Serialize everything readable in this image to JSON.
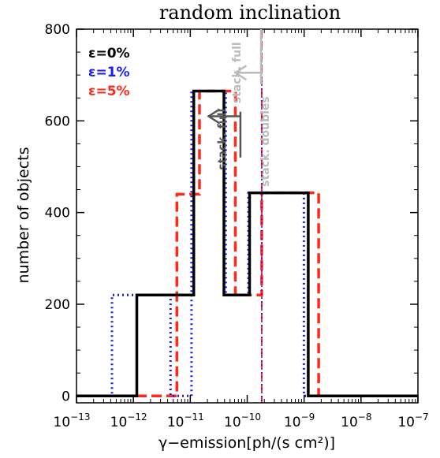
{
  "chart_data": {
    "type": "histogram",
    "title": "random inclination",
    "xlabel": "γ−emission[ph/(s cm²)]",
    "ylabel": "number of objects",
    "x_scale": "log",
    "xlim": [
      1e-13,
      1e-07
    ],
    "ylim": [
      -15,
      800
    ],
    "x_ticks": [
      {
        "mant": "10",
        "exp": "−13"
      },
      {
        "mant": "10",
        "exp": "−12"
      },
      {
        "mant": "10",
        "exp": "−11"
      },
      {
        "mant": "10",
        "exp": "−10"
      },
      {
        "mant": "10",
        "exp": "−9"
      },
      {
        "mant": "10",
        "exp": "−8"
      },
      {
        "mant": "10",
        "exp": "−7"
      }
    ],
    "y_ticks": [
      "0",
      "200",
      "400",
      "600",
      "800"
    ],
    "legend_position": "top-left",
    "series": [
      {
        "name": "ε=0%",
        "color": "#000000",
        "style": "solid",
        "edges": [
          1e-13,
          1.15e-12,
          1.15e-11,
          3.9e-11,
          1.1e-10,
          1.18e-09,
          1e-07
        ],
        "counts": [
          0,
          220,
          665,
          220,
          443,
          0
        ]
      },
      {
        "name": "ε=1%",
        "color": "#1a1aff",
        "style": "dotted",
        "edges": [
          1e-13,
          4.2e-13,
          4.5e-12,
          1.05e-11,
          4.2e-11,
          1.05e-10,
          9.9e-10,
          1e-07
        ],
        "counts": [
          0,
          220,
          0,
          665,
          220,
          443,
          0
        ]
      },
      {
        "name": "ε=5%",
        "color": "#ff2a1a",
        "style": "dashed",
        "edges": [
          1e-13,
          5.8e-12,
          1.45e-11,
          6.2e-11,
          1.8e-10,
          1.8e-09,
          1e-07
        ],
        "counts": [
          0,
          440,
          665,
          220,
          443,
          0
        ]
      }
    ],
    "vlines": [
      {
        "x": 1.8e-10,
        "color": "#ff2a1a",
        "style": "dashed"
      },
      {
        "x": 1.8e-10,
        "color": "#1a1aff",
        "style": "dotted"
      }
    ],
    "annotations": [
      {
        "text": "stack. full",
        "color": "#555555",
        "x": 4.2e-11,
        "y": 560,
        "arrow_from": 7.6e-11,
        "arrow_to": 2.1e-11,
        "arrow_y": 610,
        "bar_y_from": 520,
        "bar_y_to": 620
      },
      {
        "text": "stack. full",
        "color": "#bbbbbb",
        "x": 7.6e-11,
        "y": 705,
        "arrow_from": 1.75e-10,
        "arrow_to": 6.2e-11,
        "arrow_y": 705,
        "bar_y_from": 680,
        "bar_y_to": 800
      },
      {
        "text": "stack. doubles",
        "color": "#bbbbbb",
        "x": 2.4e-10,
        "y": 555
      }
    ]
  }
}
